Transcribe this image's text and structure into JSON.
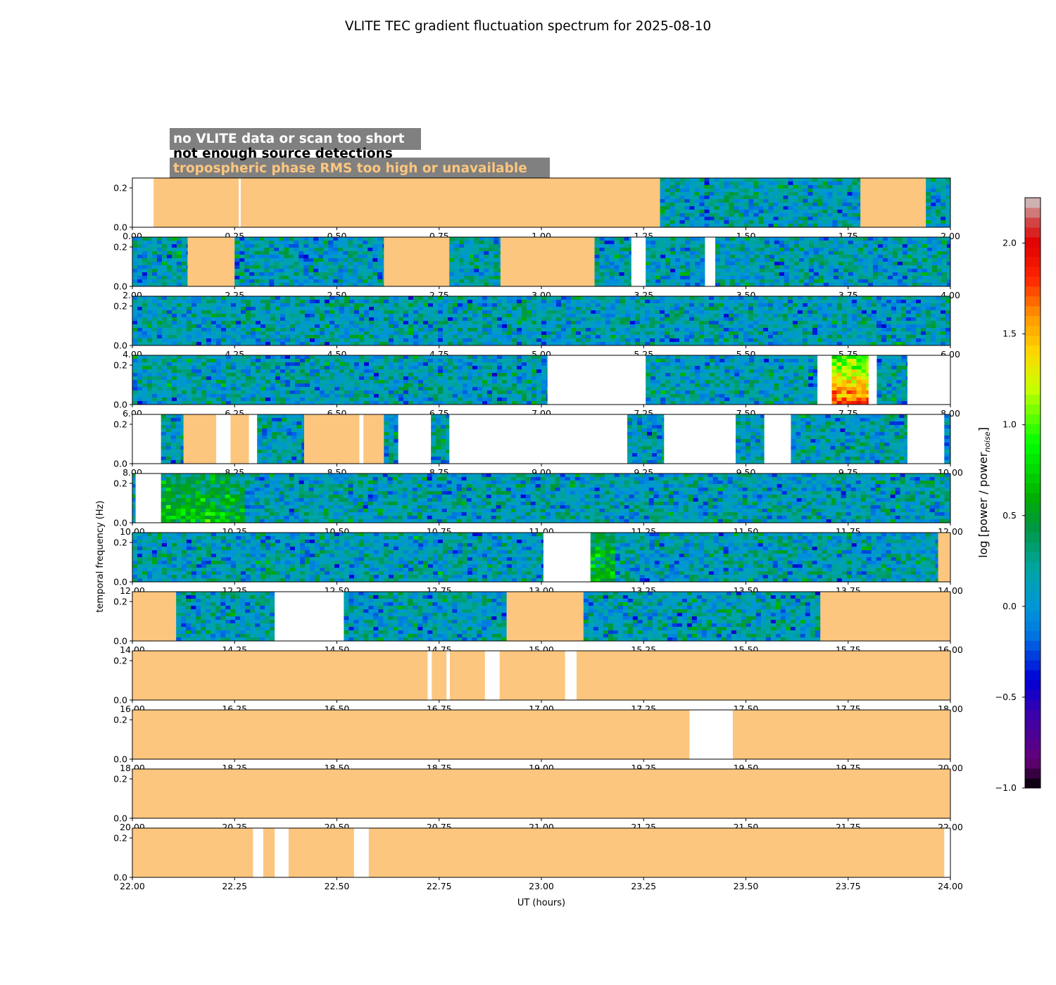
{
  "chart_data": {
    "type": "heatmap",
    "title": "VLITE TEC gradient fluctuation spectrum for 2025-08-10",
    "xlabel": "UT (hours)",
    "ylabel": "temporal frequency (Hz)",
    "ylim": [
      0,
      0.25
    ],
    "yticks": [
      "0.0",
      "0.2"
    ],
    "colorbar": {
      "label_main": "log [power / power",
      "label_sub": "noise",
      "label_close": "]",
      "range": [
        -1.0,
        2.25
      ],
      "ticks": [
        "−1.0",
        "−0.5",
        "0.0",
        "0.5",
        "1.0",
        "1.5",
        "2.0"
      ],
      "tick_values": [
        -1.0,
        -0.5,
        0.0,
        0.5,
        1.0,
        1.5,
        2.0
      ]
    },
    "legend": [
      {
        "label": "no VLITE data or scan too short",
        "color": "#ffffff"
      },
      {
        "label": "not enough source detections",
        "color": "#000000"
      },
      {
        "label": "tropospheric phase RMS too high or unavailable",
        "color": "#fdc67e"
      }
    ],
    "flag_colors": {
      "none": "#ffffff",
      "trop": "#fdc67e"
    },
    "panels": [
      {
        "range": [
          0,
          2
        ],
        "xticks": [
          "0.00",
          "0.25",
          "0.50",
          "0.75",
          "1.00",
          "1.25",
          "1.50",
          "1.75",
          "2.00"
        ],
        "segments": [
          [
            0,
            0.052,
            "none"
          ],
          [
            0.052,
            0.26,
            "trop"
          ],
          [
            0.26,
            0.265,
            "none"
          ],
          [
            0.265,
            1.29,
            "trop"
          ],
          [
            1.29,
            1.78,
            "data"
          ],
          [
            1.78,
            1.94,
            "trop"
          ],
          [
            1.94,
            2,
            "data"
          ]
        ]
      },
      {
        "range": [
          2,
          4
        ],
        "xticks": [
          "2.00",
          "2.25",
          "2.50",
          "2.75",
          "3.00",
          "3.25",
          "3.50",
          "3.75",
          "4.00"
        ],
        "segments": [
          [
            2,
            2.135,
            "data"
          ],
          [
            2.135,
            2.25,
            "trop"
          ],
          [
            2.25,
            2.615,
            "data"
          ],
          [
            2.615,
            2.775,
            "trop"
          ],
          [
            2.775,
            2.9,
            "data"
          ],
          [
            2.9,
            3.13,
            "trop"
          ],
          [
            3.13,
            3.22,
            "data"
          ],
          [
            3.22,
            3.255,
            "none"
          ],
          [
            3.255,
            3.4,
            "data"
          ],
          [
            3.4,
            3.425,
            "none"
          ],
          [
            3.425,
            4,
            "data"
          ]
        ]
      },
      {
        "range": [
          4,
          6
        ],
        "xticks": [
          "4.00",
          "4.25",
          "4.50",
          "4.75",
          "5.00",
          "5.25",
          "5.50",
          "5.75",
          "6.00"
        ],
        "segments": [
          [
            4,
            6,
            "data"
          ]
        ]
      },
      {
        "range": [
          6,
          8
        ],
        "xticks": [
          "6.00",
          "6.25",
          "6.50",
          "6.75",
          "7.00",
          "7.25",
          "7.50",
          "7.75",
          "8.00"
        ],
        "segments": [
          [
            6,
            7.015,
            "data"
          ],
          [
            7.015,
            7.255,
            "none"
          ],
          [
            7.255,
            7.675,
            "data"
          ],
          [
            7.675,
            7.71,
            "none"
          ],
          [
            7.71,
            7.8,
            "data"
          ],
          [
            7.8,
            7.82,
            "none"
          ],
          [
            7.82,
            7.895,
            "data"
          ],
          [
            7.895,
            8,
            "none"
          ]
        ],
        "hotspots": [
          [
            7.715,
            7.805,
            "high"
          ]
        ]
      },
      {
        "range": [
          8,
          10
        ],
        "xticks": [
          "8.00",
          "8.25",
          "8.50",
          "8.75",
          "9.00",
          "9.25",
          "9.50",
          "9.75",
          "10.00"
        ],
        "segments": [
          [
            8,
            8.07,
            "none"
          ],
          [
            8.07,
            8.125,
            "data"
          ],
          [
            8.125,
            8.205,
            "trop"
          ],
          [
            8.205,
            8.24,
            "none"
          ],
          [
            8.24,
            8.285,
            "trop"
          ],
          [
            8.285,
            8.305,
            "none"
          ],
          [
            8.305,
            8.42,
            "data"
          ],
          [
            8.42,
            8.555,
            "trop"
          ],
          [
            8.555,
            8.565,
            "none"
          ],
          [
            8.565,
            8.615,
            "trop"
          ],
          [
            8.615,
            8.65,
            "data"
          ],
          [
            8.65,
            8.73,
            "none"
          ],
          [
            8.73,
            8.775,
            "data"
          ],
          [
            8.775,
            9.21,
            "none"
          ],
          [
            9.21,
            9.3,
            "data"
          ],
          [
            9.3,
            9.475,
            "none"
          ],
          [
            9.475,
            9.545,
            "data"
          ],
          [
            9.545,
            9.61,
            "none"
          ],
          [
            9.61,
            9.895,
            "data"
          ],
          [
            9.895,
            9.985,
            "none"
          ],
          [
            9.985,
            10,
            "data"
          ]
        ]
      },
      {
        "range": [
          10,
          12
        ],
        "xticks": [
          "10.00",
          "10.25",
          "10.50",
          "10.75",
          "11.00",
          "11.25",
          "11.50",
          "11.75",
          "12.00"
        ],
        "segments": [
          [
            10,
            10.008,
            "data"
          ],
          [
            10.008,
            10.07,
            "none"
          ],
          [
            10.07,
            12,
            "data"
          ]
        ],
        "hotspots": [
          [
            10.07,
            10.28,
            "mid"
          ]
        ]
      },
      {
        "range": [
          12,
          14
        ],
        "xticks": [
          "12.00",
          "12.25",
          "12.50",
          "12.75",
          "13.00",
          "13.25",
          "13.50",
          "13.75",
          "14.00"
        ],
        "segments": [
          [
            12,
            13.005,
            "data"
          ],
          [
            13.005,
            13.12,
            "none"
          ],
          [
            13.12,
            13.97,
            "data"
          ],
          [
            13.97,
            14,
            "trop"
          ]
        ],
        "hotspots": [
          [
            13.12,
            13.175,
            "mid"
          ]
        ]
      },
      {
        "range": [
          14,
          16
        ],
        "xticks": [
          "14.00",
          "14.25",
          "14.50",
          "14.75",
          "15.00",
          "15.25",
          "15.50",
          "15.75",
          "16.00"
        ],
        "segments": [
          [
            14,
            14.107,
            "trop"
          ],
          [
            14.107,
            14.348,
            "data"
          ],
          [
            14.348,
            14.517,
            "none"
          ],
          [
            14.517,
            14.915,
            "data"
          ],
          [
            14.915,
            15.103,
            "trop"
          ],
          [
            15.103,
            15.682,
            "data"
          ],
          [
            15.682,
            16,
            "trop"
          ]
        ]
      },
      {
        "range": [
          16,
          18
        ],
        "xticks": [
          "16.00",
          "16.25",
          "16.50",
          "16.75",
          "17.00",
          "17.25",
          "17.50",
          "17.75",
          "18.00"
        ],
        "segments": [
          [
            16,
            16.722,
            "trop"
          ],
          [
            16.722,
            16.732,
            "none"
          ],
          [
            16.732,
            16.768,
            "trop"
          ],
          [
            16.768,
            16.776,
            "none"
          ],
          [
            16.776,
            16.862,
            "trop"
          ],
          [
            16.862,
            16.898,
            "none"
          ],
          [
            16.898,
            17.058,
            "trop"
          ],
          [
            17.058,
            17.086,
            "none"
          ],
          [
            17.086,
            18,
            "trop"
          ]
        ]
      },
      {
        "range": [
          18,
          20
        ],
        "xticks": [
          "18.00",
          "18.25",
          "18.50",
          "18.75",
          "19.00",
          "19.25",
          "19.50",
          "19.75",
          "20.00"
        ],
        "segments": [
          [
            18,
            19.362,
            "trop"
          ],
          [
            19.362,
            19.468,
            "none"
          ],
          [
            19.468,
            20,
            "trop"
          ]
        ]
      },
      {
        "range": [
          20,
          22
        ],
        "xticks": [
          "20.00",
          "20.25",
          "20.50",
          "20.75",
          "21.00",
          "21.25",
          "21.50",
          "21.75",
          "22.00"
        ],
        "segments": [
          [
            20,
            22,
            "trop"
          ]
        ]
      },
      {
        "range": [
          22,
          24
        ],
        "xticks": [
          "22.00",
          "22.25",
          "22.50",
          "22.75",
          "23.00",
          "23.25",
          "23.50",
          "23.75",
          "24.00"
        ],
        "segments": [
          [
            22,
            22.295,
            "trop"
          ],
          [
            22.295,
            22.32,
            "none"
          ],
          [
            22.32,
            22.348,
            "trop"
          ],
          [
            22.348,
            22.382,
            "none"
          ],
          [
            22.382,
            22.542,
            "trop"
          ],
          [
            22.542,
            22.578,
            "none"
          ],
          [
            22.578,
            23.985,
            "trop"
          ],
          [
            23.985,
            24,
            "none"
          ]
        ]
      }
    ]
  }
}
